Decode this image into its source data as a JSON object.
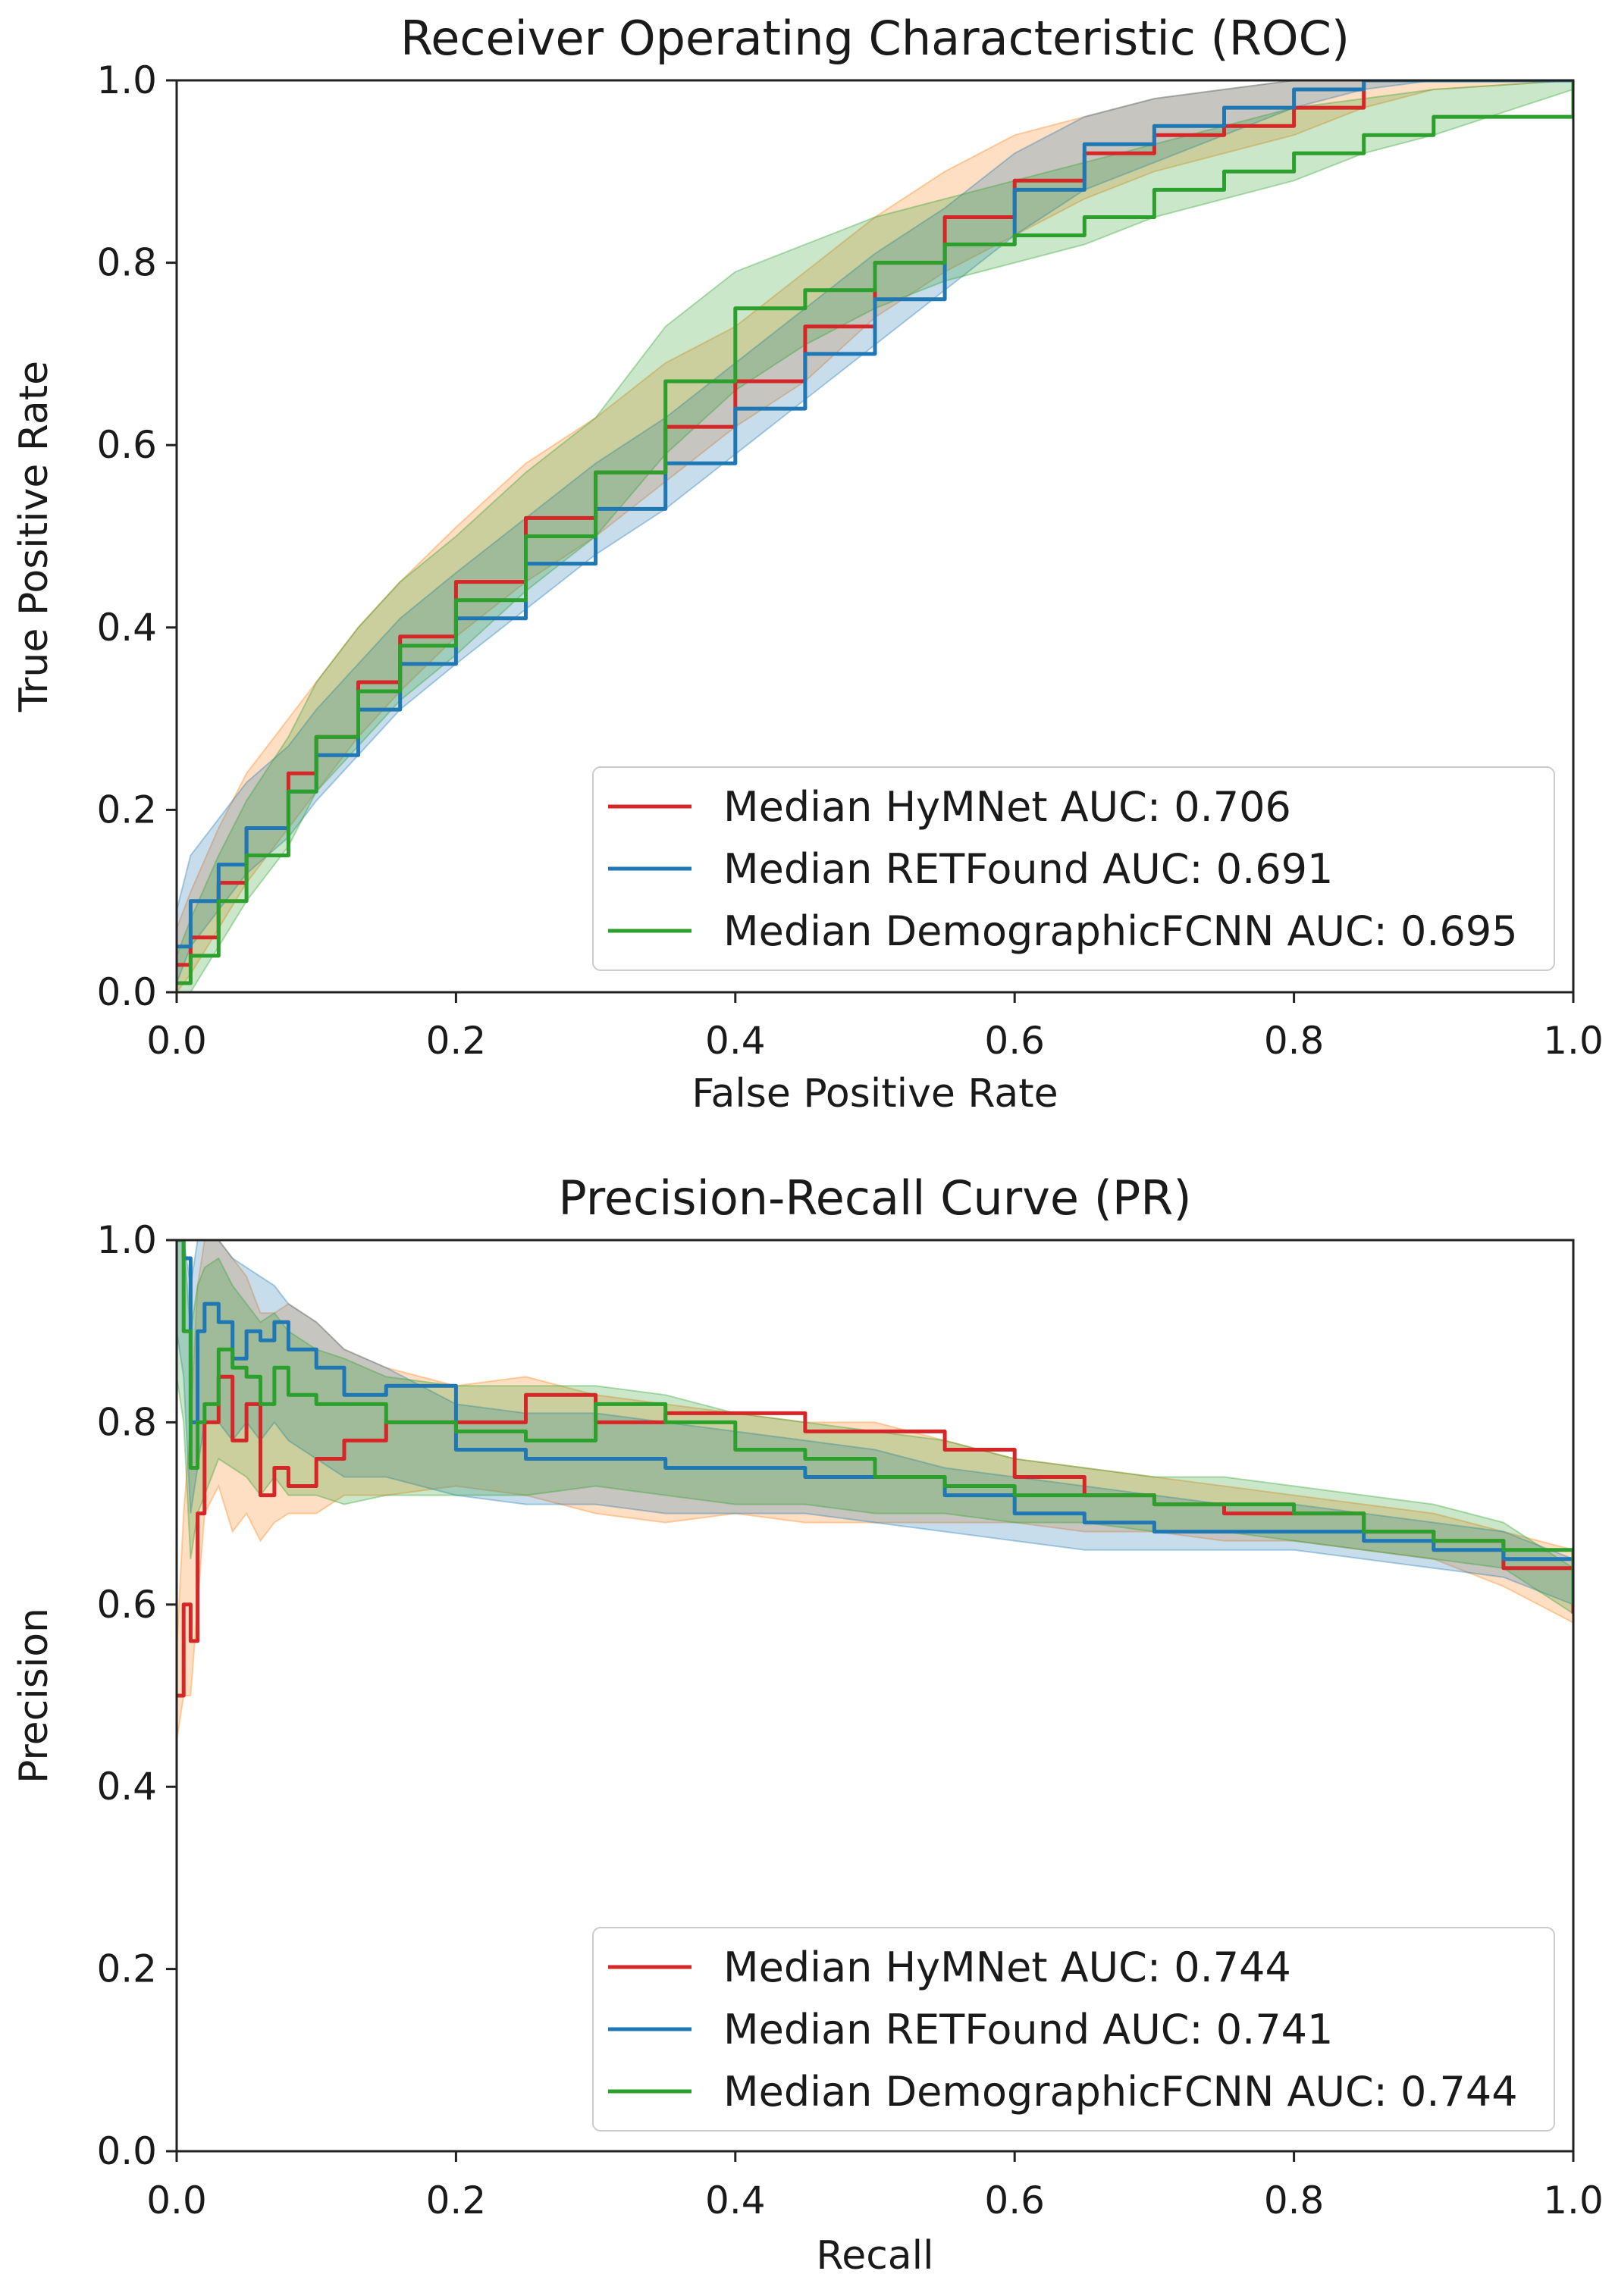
{
  "chart_data": [
    {
      "type": "line",
      "title": "Receiver Operating Characteristic (ROC)",
      "xlabel": "False Positive Rate",
      "ylabel": "True Positive Rate",
      "xlim": [
        0,
        1
      ],
      "ylim": [
        0,
        1
      ],
      "xticks": [
        "0.0",
        "0.2",
        "0.4",
        "0.6",
        "0.8",
        "1.0"
      ],
      "yticks": [
        "0.0",
        "0.2",
        "0.4",
        "0.6",
        "0.8",
        "1.0"
      ],
      "legend_position": "lower-right",
      "series": [
        {
          "name": "Median HyMNet AUC: 0.706",
          "color": "#d62728",
          "fill_color": "#ff7f0e",
          "x": [
            0,
            0.01,
            0.03,
            0.05,
            0.08,
            0.1,
            0.13,
            0.16,
            0.2,
            0.25,
            0.3,
            0.35,
            0.4,
            0.45,
            0.5,
            0.55,
            0.6,
            0.65,
            0.7,
            0.75,
            0.8,
            0.85,
            0.9,
            1.0
          ],
          "y": [
            0.03,
            0.06,
            0.12,
            0.18,
            0.24,
            0.28,
            0.34,
            0.39,
            0.45,
            0.52,
            0.57,
            0.62,
            0.67,
            0.73,
            0.8,
            0.85,
            0.89,
            0.92,
            0.94,
            0.95,
            0.97,
            1.0,
            1.0,
            1.0
          ],
          "band_lower": [
            0.0,
            0.02,
            0.07,
            0.12,
            0.18,
            0.22,
            0.28,
            0.33,
            0.39,
            0.45,
            0.5,
            0.56,
            0.62,
            0.67,
            0.74,
            0.79,
            0.83,
            0.87,
            0.9,
            0.92,
            0.94,
            0.97,
            0.99,
            1.0
          ],
          "band_upper": [
            0.07,
            0.11,
            0.18,
            0.24,
            0.3,
            0.34,
            0.4,
            0.45,
            0.51,
            0.58,
            0.63,
            0.69,
            0.73,
            0.79,
            0.85,
            0.9,
            0.94,
            0.96,
            0.98,
            0.99,
            1.0,
            1.0,
            1.0,
            1.0
          ]
        },
        {
          "name": "Median RETFound AUC: 0.691",
          "color": "#1f77b4",
          "fill_color": "#1f77b4",
          "x": [
            0,
            0.01,
            0.03,
            0.05,
            0.08,
            0.1,
            0.13,
            0.16,
            0.2,
            0.25,
            0.3,
            0.35,
            0.4,
            0.45,
            0.5,
            0.55,
            0.6,
            0.65,
            0.7,
            0.75,
            0.8,
            0.85,
            0.9,
            1.0
          ],
          "y": [
            0.05,
            0.1,
            0.14,
            0.18,
            0.22,
            0.26,
            0.31,
            0.36,
            0.41,
            0.47,
            0.53,
            0.58,
            0.64,
            0.7,
            0.76,
            0.82,
            0.88,
            0.93,
            0.95,
            0.97,
            0.99,
            1.0,
            1.0,
            1.0
          ],
          "band_lower": [
            0.01,
            0.05,
            0.09,
            0.13,
            0.17,
            0.21,
            0.26,
            0.31,
            0.36,
            0.42,
            0.48,
            0.53,
            0.59,
            0.65,
            0.71,
            0.77,
            0.83,
            0.88,
            0.91,
            0.94,
            0.97,
            0.99,
            1.0,
            1.0
          ],
          "band_upper": [
            0.09,
            0.15,
            0.19,
            0.23,
            0.27,
            0.31,
            0.36,
            0.41,
            0.46,
            0.52,
            0.58,
            0.63,
            0.69,
            0.75,
            0.81,
            0.86,
            0.92,
            0.96,
            0.98,
            0.99,
            1.0,
            1.0,
            1.0,
            1.0
          ]
        },
        {
          "name": "Median DemographicFCNN AUC: 0.695",
          "color": "#2ca02c",
          "fill_color": "#2ca02c",
          "x": [
            0,
            0.01,
            0.03,
            0.05,
            0.08,
            0.1,
            0.13,
            0.16,
            0.2,
            0.25,
            0.3,
            0.35,
            0.4,
            0.45,
            0.5,
            0.55,
            0.6,
            0.65,
            0.7,
            0.75,
            0.8,
            0.85,
            0.9,
            1.0
          ],
          "y": [
            0.01,
            0.04,
            0.1,
            0.15,
            0.22,
            0.28,
            0.33,
            0.38,
            0.43,
            0.5,
            0.57,
            0.67,
            0.75,
            0.77,
            0.8,
            0.82,
            0.83,
            0.85,
            0.88,
            0.9,
            0.92,
            0.94,
            0.96,
            1.0
          ],
          "band_lower": [
            0.0,
            0.0,
            0.05,
            0.1,
            0.16,
            0.22,
            0.27,
            0.32,
            0.37,
            0.44,
            0.5,
            0.59,
            0.66,
            0.71,
            0.75,
            0.78,
            0.8,
            0.82,
            0.85,
            0.87,
            0.89,
            0.92,
            0.94,
            0.99
          ],
          "band_upper": [
            0.04,
            0.08,
            0.15,
            0.21,
            0.28,
            0.34,
            0.4,
            0.45,
            0.5,
            0.57,
            0.63,
            0.73,
            0.79,
            0.82,
            0.85,
            0.87,
            0.89,
            0.91,
            0.93,
            0.95,
            0.97,
            0.98,
            0.99,
            1.0
          ]
        }
      ]
    },
    {
      "type": "line",
      "title": "Precision-Recall Curve (PR)",
      "xlabel": "Recall",
      "ylabel": "Precision",
      "xlim": [
        0,
        1
      ],
      "ylim": [
        0,
        1
      ],
      "xticks": [
        "0.0",
        "0.2",
        "0.4",
        "0.6",
        "0.8",
        "1.0"
      ],
      "yticks": [
        "0.0",
        "0.2",
        "0.4",
        "0.6",
        "0.8",
        "1.0"
      ],
      "legend_position": "lower-right",
      "series": [
        {
          "name": "Median HyMNet AUC: 0.744",
          "color": "#d62728",
          "fill_color": "#ff7f0e",
          "x": [
            0.0,
            0.005,
            0.01,
            0.015,
            0.02,
            0.03,
            0.04,
            0.05,
            0.06,
            0.07,
            0.08,
            0.1,
            0.12,
            0.15,
            0.2,
            0.25,
            0.3,
            0.35,
            0.4,
            0.45,
            0.5,
            0.55,
            0.6,
            0.65,
            0.7,
            0.75,
            0.8,
            0.85,
            0.9,
            0.95,
            1.0
          ],
          "y": [
            0.5,
            0.6,
            0.56,
            0.7,
            0.8,
            0.85,
            0.78,
            0.82,
            0.72,
            0.75,
            0.73,
            0.76,
            0.78,
            0.8,
            0.8,
            0.83,
            0.8,
            0.81,
            0.81,
            0.79,
            0.79,
            0.77,
            0.74,
            0.72,
            0.71,
            0.7,
            0.7,
            0.68,
            0.67,
            0.64,
            0.59
          ],
          "band_lower": [
            0.45,
            0.5,
            0.5,
            0.6,
            0.7,
            0.73,
            0.68,
            0.7,
            0.67,
            0.69,
            0.7,
            0.7,
            0.72,
            0.72,
            0.73,
            0.72,
            0.7,
            0.69,
            0.7,
            0.69,
            0.69,
            0.69,
            0.69,
            0.68,
            0.68,
            0.67,
            0.67,
            0.66,
            0.65,
            0.62,
            0.58
          ],
          "band_upper": [
            0.55,
            0.7,
            0.8,
            0.95,
            1.0,
            1.0,
            0.98,
            0.96,
            0.92,
            0.92,
            0.93,
            0.91,
            0.88,
            0.86,
            0.84,
            0.85,
            0.83,
            0.82,
            0.81,
            0.8,
            0.8,
            0.78,
            0.76,
            0.75,
            0.74,
            0.73,
            0.72,
            0.71,
            0.7,
            0.68,
            0.66
          ]
        },
        {
          "name": "Median RETFound AUC: 0.741",
          "color": "#1f77b4",
          "fill_color": "#1f77b4",
          "x": [
            0.0,
            0.005,
            0.01,
            0.015,
            0.02,
            0.03,
            0.04,
            0.05,
            0.06,
            0.07,
            0.08,
            0.1,
            0.12,
            0.15,
            0.2,
            0.25,
            0.3,
            0.35,
            0.4,
            0.45,
            0.5,
            0.55,
            0.6,
            0.65,
            0.7,
            0.75,
            0.8,
            0.85,
            0.9,
            0.95,
            1.0
          ],
          "y": [
            1.0,
            0.98,
            0.8,
            0.9,
            0.93,
            0.91,
            0.87,
            0.9,
            0.89,
            0.91,
            0.88,
            0.86,
            0.83,
            0.84,
            0.77,
            0.76,
            0.76,
            0.75,
            0.75,
            0.74,
            0.74,
            0.72,
            0.7,
            0.69,
            0.68,
            0.68,
            0.68,
            0.67,
            0.66,
            0.65,
            0.62
          ],
          "band_lower": [
            0.9,
            0.85,
            0.7,
            0.75,
            0.8,
            0.8,
            0.78,
            0.8,
            0.78,
            0.8,
            0.78,
            0.76,
            0.74,
            0.74,
            0.72,
            0.71,
            0.71,
            0.7,
            0.7,
            0.7,
            0.69,
            0.68,
            0.67,
            0.66,
            0.66,
            0.66,
            0.66,
            0.65,
            0.64,
            0.63,
            0.6
          ],
          "band_upper": [
            1.0,
            1.0,
            0.95,
            1.0,
            1.0,
            1.0,
            0.98,
            0.97,
            0.96,
            0.95,
            0.93,
            0.91,
            0.88,
            0.86,
            0.82,
            0.81,
            0.81,
            0.8,
            0.79,
            0.78,
            0.77,
            0.75,
            0.74,
            0.73,
            0.72,
            0.71,
            0.71,
            0.7,
            0.69,
            0.68,
            0.65
          ]
        },
        {
          "name": "Median DemographicFCNN AUC: 0.744",
          "color": "#2ca02c",
          "fill_color": "#2ca02c",
          "x": [
            0.0,
            0.005,
            0.01,
            0.015,
            0.02,
            0.03,
            0.04,
            0.05,
            0.06,
            0.07,
            0.08,
            0.1,
            0.12,
            0.15,
            0.2,
            0.25,
            0.3,
            0.35,
            0.4,
            0.45,
            0.5,
            0.55,
            0.6,
            0.65,
            0.7,
            0.75,
            0.8,
            0.85,
            0.9,
            0.95,
            1.0
          ],
          "y": [
            1.0,
            0.9,
            0.75,
            0.8,
            0.82,
            0.88,
            0.86,
            0.85,
            0.82,
            0.86,
            0.83,
            0.82,
            0.82,
            0.8,
            0.79,
            0.78,
            0.82,
            0.8,
            0.77,
            0.76,
            0.74,
            0.73,
            0.72,
            0.72,
            0.71,
            0.71,
            0.7,
            0.68,
            0.67,
            0.66,
            0.6
          ],
          "band_lower": [
            0.85,
            0.8,
            0.65,
            0.7,
            0.72,
            0.76,
            0.75,
            0.74,
            0.72,
            0.74,
            0.72,
            0.72,
            0.71,
            0.72,
            0.72,
            0.72,
            0.73,
            0.72,
            0.71,
            0.71,
            0.7,
            0.7,
            0.69,
            0.69,
            0.68,
            0.68,
            0.67,
            0.66,
            0.65,
            0.64,
            0.59
          ],
          "band_upper": [
            1.0,
            1.0,
            0.9,
            0.95,
            0.97,
            0.98,
            0.95,
            0.93,
            0.91,
            0.92,
            0.9,
            0.88,
            0.87,
            0.85,
            0.84,
            0.84,
            0.84,
            0.83,
            0.81,
            0.8,
            0.79,
            0.78,
            0.76,
            0.75,
            0.74,
            0.74,
            0.73,
            0.72,
            0.71,
            0.69,
            0.64
          ]
        }
      ]
    }
  ]
}
